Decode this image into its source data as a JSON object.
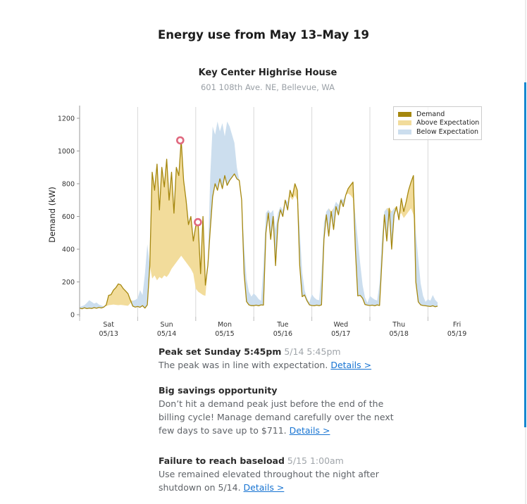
{
  "page_title": "Energy use from May 13–May 19",
  "insights": [
    {
      "title": "Peak set Sunday 5:45pm",
      "timestamp": "5/14 5:45pm",
      "body": "The peak was in line with expectation.",
      "link": "Details >"
    },
    {
      "title": "Big savings opportunity",
      "timestamp": "",
      "body": "Don’t hit a demand peak just before the end of the billing cycle! Manage demand carefully over the next few days to save up to $711.",
      "link": "Details >"
    },
    {
      "title": "Failure to reach baseload",
      "timestamp": "5/15 1:00am",
      "body": "Use remained elevated throughout the night after shutdown on 5/14.",
      "link": "Details >"
    }
  ],
  "chart_data": {
    "type": "area",
    "title": "Key Center Highrise House",
    "subtitle": "601 108th Ave. NE, Bellevue, WA",
    "ylabel": "Demand (kW)",
    "yticks": [
      0,
      200,
      400,
      600,
      800,
      1000,
      1200
    ],
    "ylim": [
      0,
      1280
    ],
    "legend": [
      "Demand",
      "Above Expectation",
      "Below Expectation"
    ],
    "legend_position": "top-right",
    "grid": "vertical-day-lines",
    "colors": {
      "demand": "#a5870e",
      "above_expectation": "#f2dc9b",
      "below_expectation": "#ccdeee",
      "marker": "#e0697f",
      "grid": "#d8d8d8",
      "axis": "#9a9a9a",
      "tick_text": "#333333",
      "scrollbar": "#1688d0",
      "link": "#1673d2"
    },
    "x_axis_days": [
      {
        "label": "Sat",
        "date": "05/13"
      },
      {
        "label": "Sun",
        "date": "05/14"
      },
      {
        "label": "Mon",
        "date": "05/15"
      },
      {
        "label": "Tue",
        "date": "05/16"
      },
      {
        "label": "Wed",
        "date": "05/17"
      },
      {
        "label": "Thu",
        "date": "05/18"
      },
      {
        "label": "Fri",
        "date": "05/19"
      }
    ],
    "units": "kW",
    "sampling": "hourly",
    "demand_kw_by_day": [
      [
        40,
        36,
        42,
        37,
        40,
        38,
        43,
        39,
        44,
        41,
        46,
        60,
        118,
        122,
        150,
        165,
        188,
        182,
        160,
        145,
        128,
        88,
        52,
        46
      ],
      [
        50,
        45,
        55,
        40,
        60,
        300,
        870,
        760,
        920,
        640,
        900,
        780,
        950,
        700,
        870,
        620,
        900,
        850,
        1065,
        820,
        700,
        550,
        600,
        450
      ],
      [
        540,
        560,
        250,
        600,
        180,
        300,
        520,
        720,
        800,
        760,
        830,
        770,
        850,
        790,
        820,
        840,
        860,
        830,
        820,
        700,
        250,
        80,
        60,
        55
      ],
      [
        55,
        58,
        54,
        60,
        58,
        500,
        620,
        460,
        600,
        300,
        560,
        640,
        600,
        700,
        640,
        760,
        720,
        800,
        760,
        300,
        110,
        120,
        85,
        60
      ],
      [
        56,
        54,
        58,
        55,
        60,
        460,
        610,
        480,
        630,
        520,
        660,
        610,
        700,
        660,
        730,
        770,
        790,
        810,
        400,
        115,
        118,
        100,
        62,
        58
      ],
      [
        56,
        58,
        54,
        60,
        56,
        340,
        610,
        450,
        650,
        400,
        610,
        660,
        580,
        710,
        630,
        690,
        760,
        810,
        850,
        200,
        78,
        60,
        56,
        54
      ],
      [
        52,
        50,
        54,
        48,
        52
      ]
    ],
    "expectation_kw_by_day": [
      [
        46,
        52,
        58,
        72,
        88,
        78,
        68,
        74,
        62,
        56,
        50,
        52,
        58,
        60,
        62,
        60,
        58,
        60,
        58,
        56,
        54,
        70,
        85,
        90
      ],
      [
        100,
        150,
        120,
        250,
        430,
        300,
        220,
        240,
        210,
        230,
        220,
        240,
        230,
        250,
        280,
        300,
        320,
        340,
        360,
        340,
        320,
        300,
        280,
        250
      ],
      [
        160,
        140,
        130,
        120,
        115,
        280,
        850,
        1150,
        1100,
        1180,
        1120,
        1170,
        1090,
        1180,
        1150,
        1100,
        1050,
        900,
        820,
        700,
        420,
        220,
        140,
        110
      ],
      [
        130,
        115,
        95,
        85,
        300,
        620,
        640,
        620,
        640,
        520,
        620,
        660,
        640,
        700,
        690,
        720,
        700,
        730,
        700,
        520,
        260,
        150,
        100,
        75
      ],
      [
        125,
        105,
        92,
        88,
        260,
        560,
        630,
        650,
        610,
        650,
        690,
        670,
        710,
        700,
        730,
        740,
        730,
        710,
        600,
        460,
        310,
        180,
        105,
        72
      ],
      [
        115,
        102,
        92,
        86,
        190,
        480,
        630,
        650,
        610,
        630,
        650,
        630,
        610,
        620,
        590,
        610,
        630,
        650,
        610,
        500,
        340,
        190,
        115,
        78
      ],
      [
        95,
        85,
        120,
        90,
        75
      ]
    ],
    "markers": [
      {
        "name": "peak",
        "day_index": 1,
        "hour": 17.6,
        "value_kw": 1065
      },
      {
        "name": "baseload-failure",
        "day_index": 2,
        "hour": 0.9,
        "value_kw": 565
      }
    ]
  }
}
